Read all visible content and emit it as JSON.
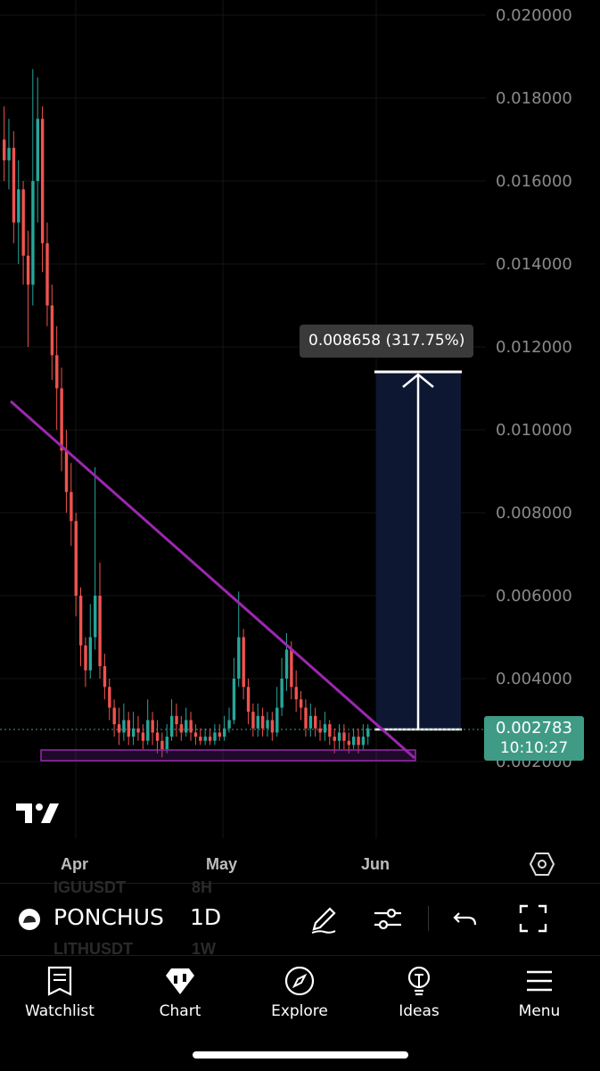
{
  "chart": {
    "price_axis_labels": [
      "0.020000",
      "0.018000",
      "0.016000",
      "0.014000",
      "0.012000",
      "0.010000",
      "0.008000",
      "0.006000",
      "0.004000",
      "0.002000"
    ],
    "time_axis_labels": [
      "Apr",
      "May",
      "Jun"
    ],
    "measure_label": "0.008658 (317.75%)",
    "last_price": "0.002783",
    "countdown": "10:10:27",
    "colors": {
      "up": "#26a69a",
      "down": "#ef5350",
      "trendline": "#9c27b0",
      "measure_fill": "#0d1731"
    }
  },
  "toolbar": {
    "ghost_symbol_top": "IGUUSDT",
    "ghost_interval_top": "8H",
    "ghost_symbol_bottom": "LITHUSDT",
    "ghost_interval_bottom": "1W",
    "symbol": "PONCHUS",
    "interval": "1D",
    "tools": [
      "draw-icon",
      "indicators-icon",
      "undo-icon",
      "fullscreen-icon"
    ]
  },
  "nav": {
    "items": [
      {
        "label": "Watchlist",
        "icon": "watchlist-icon"
      },
      {
        "label": "Chart",
        "icon": "chart-icon"
      },
      {
        "label": "Explore",
        "icon": "compass-icon"
      },
      {
        "label": "Ideas",
        "icon": "lightbulb-icon"
      },
      {
        "label": "Menu",
        "icon": "menu-icon"
      }
    ]
  }
}
